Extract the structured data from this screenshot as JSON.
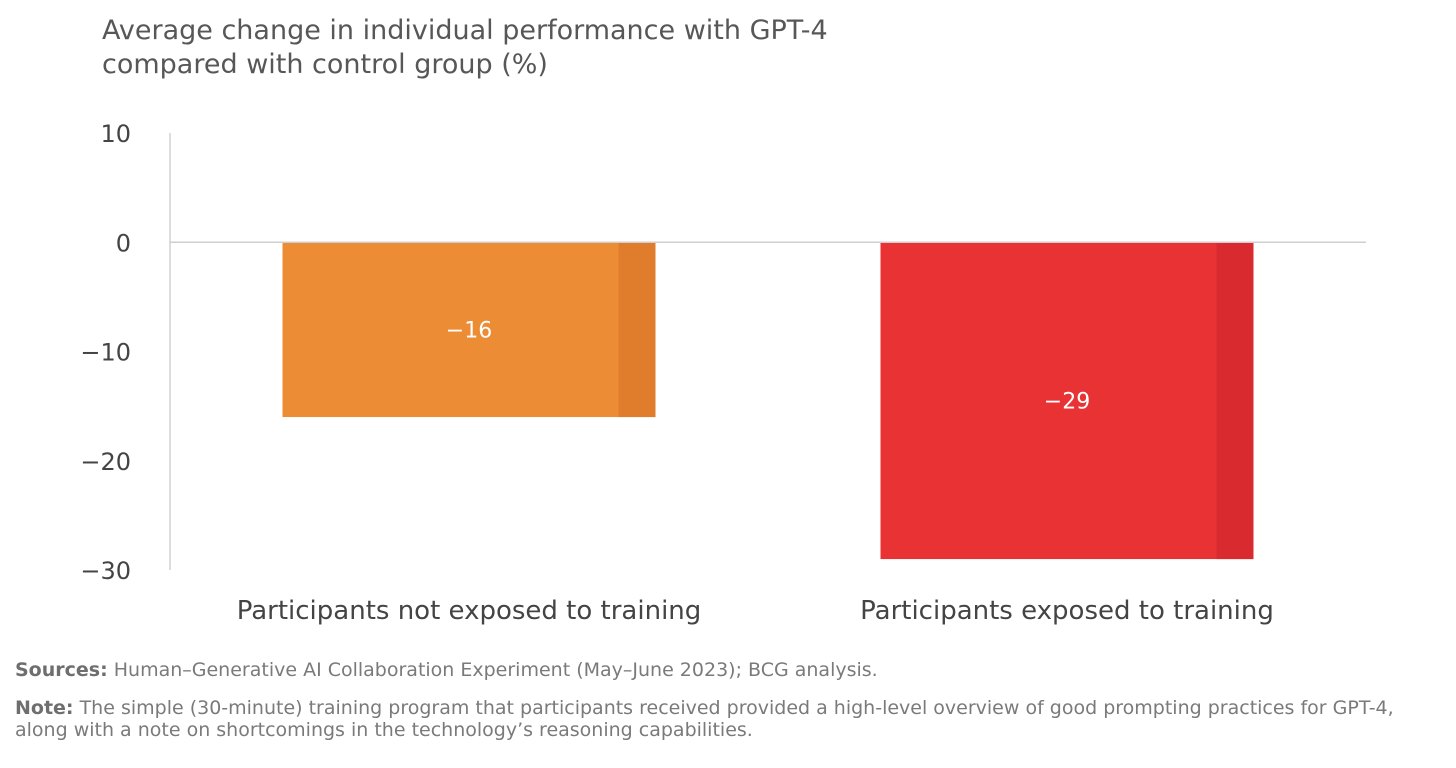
{
  "chart_data": {
    "type": "bar",
    "title": "Average change in individual performance with GPT-4 compared with control group (%)",
    "title_lines": [
      "Average change in individual performance with GPT-4",
      "compared with control group (%)"
    ],
    "categories": [
      "Participants not exposed to training",
      "Participants exposed to training"
    ],
    "values": [
      -16,
      -29
    ],
    "data_labels": [
      "−16",
      "−29"
    ],
    "colors": [
      "#ec8c35",
      "#e83234"
    ],
    "shade_colors": [
      "#df7d2c",
      "#d92b2f"
    ],
    "ylim": [
      -30,
      10
    ],
    "yticks": [
      10,
      0,
      -10,
      -20,
      -30
    ],
    "ytick_labels": [
      "10",
      "0",
      "−10",
      "−20",
      "−30"
    ],
    "xlabel": "",
    "ylabel": "",
    "grid": false
  },
  "footnotes": {
    "sources_label": "Sources:",
    "sources_text": " Human–Generative AI Collaboration Experiment (May–June 2023); BCG analysis.",
    "note_label": "Note:",
    "note_text": " The simple (30-minute) training program that participants received provided a high-level overview of good prompting practices for GPT-4, along with a note on shortcomings in the technology’s reasoning capabilities."
  }
}
